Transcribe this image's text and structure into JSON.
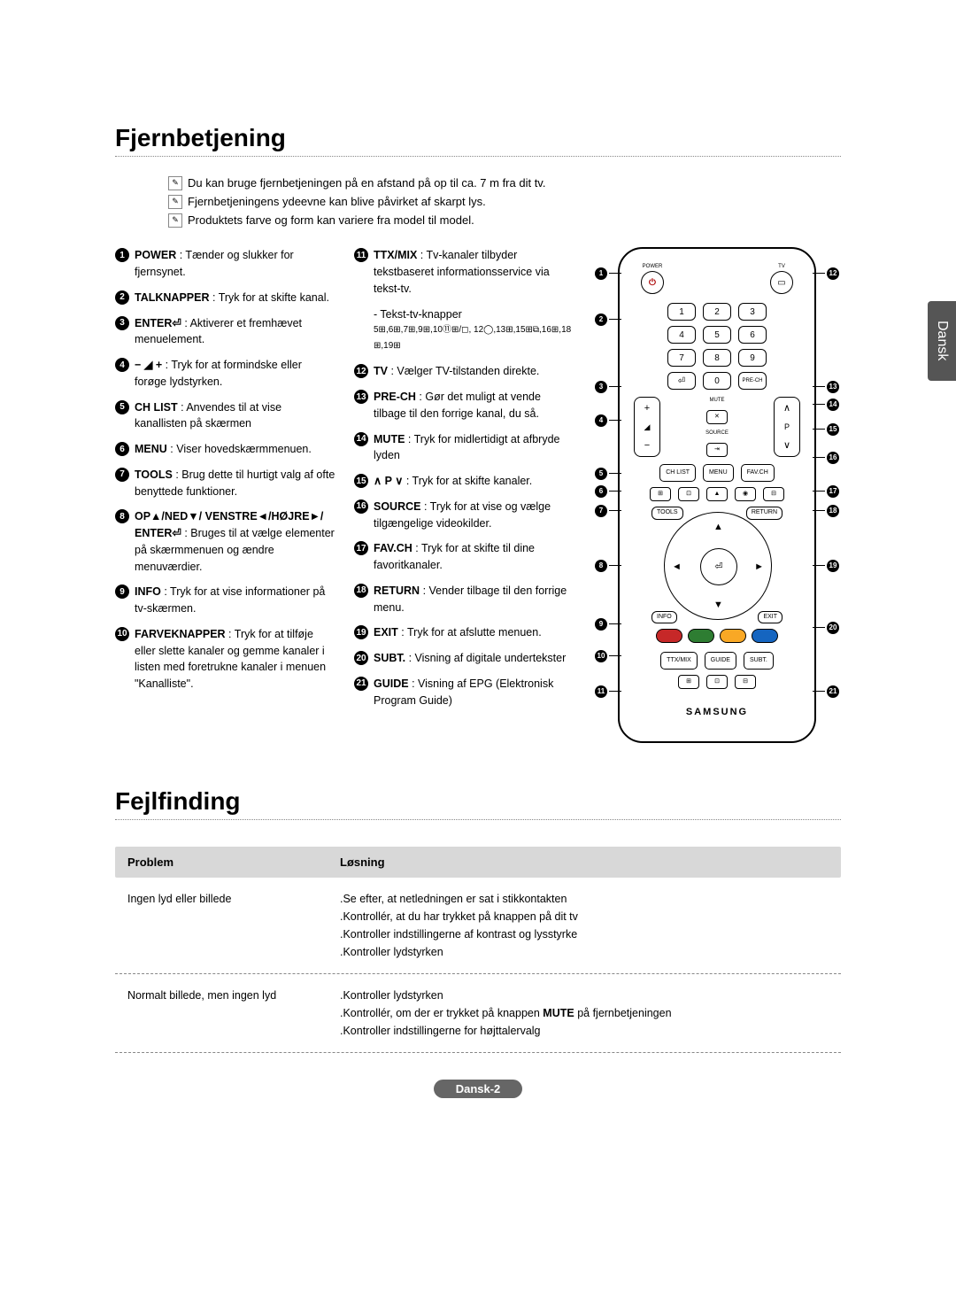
{
  "side_tab": "Dansk",
  "section1": {
    "title": "Fjernbetjening",
    "notes": [
      "Du kan bruge fjernbetjeningen på en afstand på op til ca. 7 m fra dit tv.",
      "Fjernbetjeningens ydeevne kan blive påvirket af skarpt lys.",
      "Produktets farve og form kan variere fra model til model."
    ]
  },
  "col1": [
    {
      "n": "1",
      "label": "POWER",
      "text": " : Tænder og slukker for fjernsynet."
    },
    {
      "n": "2",
      "label": "TALKNAPPER",
      "text": " : Tryk for at skifte kanal."
    },
    {
      "n": "3",
      "label": "ENTER⏎",
      "text": " : Aktiverer et fremhævet menuelement."
    },
    {
      "n": "4",
      "label": "− ◢ +",
      "text": " : Tryk for at formindske eller forøge lydstyrken."
    },
    {
      "n": "5",
      "label": "CH LIST",
      "text": " : Anvendes til at vise kanallisten på skærmen"
    },
    {
      "n": "6",
      "label": "MENU",
      "text": " : Viser hovedskærmmenuen."
    },
    {
      "n": "7",
      "label": "TOOLS",
      "text": " : Brug dette til hurtigt valg af ofte benyttede funktioner."
    },
    {
      "n": "8",
      "label": "OP▲/NED▼/ VENSTRE◄/HØJRE►/ ENTER⏎",
      "text": " : Bruges til at vælge elementer på skærmmenuen og ændre menuværdier."
    },
    {
      "n": "9",
      "label": "INFO",
      "text": " : Tryk for at vise informationer på tv-skærmen."
    },
    {
      "n": "10",
      "label": "FARVEKNAPPER",
      "text": " : Tryk for at tilføje eller slette kanaler og gemme kanaler i listen med foretrukne kanaler i menuen \"Kanalliste\"."
    }
  ],
  "col2_top": {
    "n": "11",
    "label": "TTX/MIX",
    "text": " : Tv-kanaler tilbyder tekstbaseret informationsservice via tekst-tv.",
    "sub": "- Tekst-tv-knapper"
  },
  "col2_icons": "5⊞,6⊞,7⊞,9⊞,10⑪⊞/◻, 12◯,13⊞,15⊞⧉,16⊞,18⊞,19⊞",
  "col2_rest": [
    {
      "n": "12",
      "label": "TV",
      "text": " : Vælger TV-tilstanden direkte."
    },
    {
      "n": "13",
      "label": "PRE-CH",
      "text": " : Gør det muligt at vende tilbage til den forrige kanal, du så."
    },
    {
      "n": "14",
      "label": "MUTE",
      "text": " : Tryk for midlertidigt at afbryde lyden"
    },
    {
      "n": "15",
      "label": "∧ P ∨",
      "text": " : Tryk for at skifte kanaler."
    },
    {
      "n": "16",
      "label": "SOURCE",
      "text": " : Tryk for at vise og vælge tilgængelige videokilder."
    },
    {
      "n": "17",
      "label": "FAV.CH",
      "text": " : Tryk for at skifte til dine favoritkanaler."
    },
    {
      "n": "18",
      "label": "RETURN",
      "text": " : Vender tilbage til den forrige menu."
    },
    {
      "n": "19",
      "label": "EXIT",
      "text": " : Tryk for at afslutte menuen."
    },
    {
      "n": "20",
      "label": "SUBT.",
      "text": " : Visning af digitale undertekster"
    },
    {
      "n": "21",
      "label": "GUIDE",
      "text": " : Visning af EPG (Elektronisk Program Guide)"
    }
  ],
  "remote": {
    "power_label": "POWER",
    "tv_label": "TV",
    "numbers": [
      "1",
      "2",
      "3",
      "4",
      "5",
      "6",
      "7",
      "8",
      "9",
      "0"
    ],
    "enter_icon": "⏎",
    "prech": "PRE-CH",
    "mute": "MUTE",
    "source": "SOURCE",
    "chlist": "CH LIST",
    "menu": "MENU",
    "favch": "FAV.CH",
    "tools": "TOOLS",
    "return": "RETURN",
    "info": "INFO",
    "exit": "EXIT",
    "ttxmix": "TTX/MIX",
    "guide": "GUIDE",
    "subt": "SUBT.",
    "brand": "SAMSUNG",
    "vol_plus": "+",
    "vol_minus": "−",
    "vol_icon": "◢",
    "p_up": "∧",
    "p_label": "P",
    "p_down": "∨",
    "colors": [
      "#c62828",
      "#2e7d32",
      "#f9a825",
      "#1565c0"
    ]
  },
  "callouts_left": [
    "1",
    "2",
    "3",
    "4",
    "5",
    "6",
    "7",
    "8",
    "9",
    "10",
    "11"
  ],
  "callouts_right": [
    "12",
    "13",
    "14",
    "15",
    "16",
    "17",
    "18",
    "19",
    "20",
    "21"
  ],
  "section2": {
    "title": "Fejlfinding",
    "head_problem": "Problem",
    "head_solution": "Løsning",
    "rows": [
      {
        "problem": "Ingen lyd eller billede",
        "solutions": [
          ".Se efter, at netledningen er sat i stikkontakten",
          ".Kontrollér, at du har trykket på knappen på dit tv",
          ".Kontroller indstillingerne af kontrast og lysstyrke",
          ".Kontroller lydstyrken"
        ]
      },
      {
        "problem": "Normalt billede, men ingen lyd",
        "solutions_html": [
          ".Kontroller lydstyrken",
          ".Kontrollér, om der er trykket på knappen <strong>MUTE</strong> på fjernbetjeningen",
          ".Kontroller indstillingerne for højttalervalg"
        ]
      }
    ]
  },
  "page_number": "Dansk-2"
}
